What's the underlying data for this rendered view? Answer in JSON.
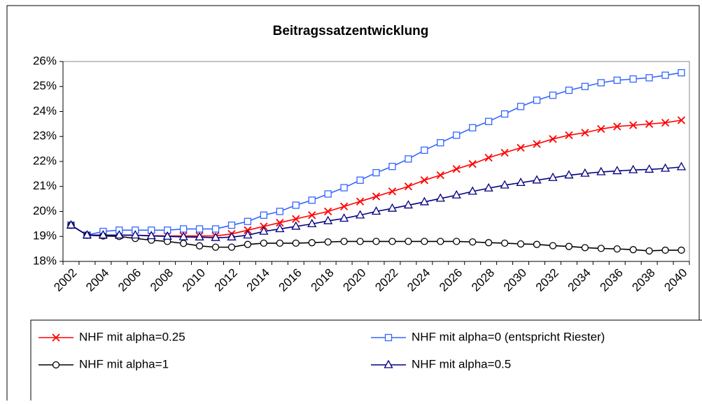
{
  "chart_data": {
    "type": "line",
    "title": "Beitragssatzentwicklung",
    "categories": [
      "2002",
      null,
      "2004",
      null,
      "2006",
      null,
      "2008",
      null,
      "2010",
      null,
      "2012",
      null,
      "2014",
      null,
      "2016",
      null,
      "2018",
      null,
      "2020",
      null,
      "2022",
      null,
      "2024",
      null,
      "2026",
      null,
      "2028",
      null,
      "2030",
      null,
      "2032",
      null,
      "2034",
      null,
      "2036",
      null,
      "2038",
      null,
      "2040"
    ],
    "ylim": [
      18,
      26
    ],
    "yticks": [
      {
        "value": 18,
        "label": "18%"
      },
      {
        "value": 19,
        "label": "19%"
      },
      {
        "value": 20,
        "label": "20%"
      },
      {
        "value": 21,
        "label": "21%"
      },
      {
        "value": 22,
        "label": "22%"
      },
      {
        "value": 23,
        "label": "23%"
      },
      {
        "value": 24,
        "label": "24%"
      },
      {
        "value": 25,
        "label": "25%"
      },
      {
        "value": 26,
        "label": "26%"
      }
    ],
    "grid": false,
    "series": [
      {
        "name": "NHF mit alpha=0.25",
        "color": "#ff0000",
        "marker": "x",
        "values": [
          19.45,
          19.05,
          19.05,
          19.05,
          19.05,
          19.03,
          19.02,
          19.02,
          19.02,
          19.02,
          19.1,
          19.25,
          19.4,
          19.55,
          19.7,
          19.85,
          20.0,
          20.2,
          20.4,
          20.6,
          20.8,
          21.0,
          21.25,
          21.45,
          21.7,
          21.9,
          22.15,
          22.35,
          22.55,
          22.7,
          22.9,
          23.05,
          23.15,
          23.3,
          23.4,
          23.45,
          23.5,
          23.55,
          23.65
        ]
      },
      {
        "name": "NHF mit alpha=0 (entspricht Riester)",
        "color": "#3366ff",
        "marker": "square",
        "values": [
          19.45,
          19.05,
          19.2,
          19.25,
          19.25,
          19.25,
          19.25,
          19.3,
          19.3,
          19.3,
          19.45,
          19.6,
          19.85,
          20.0,
          20.25,
          20.45,
          20.7,
          20.95,
          21.25,
          21.55,
          21.8,
          22.1,
          22.45,
          22.75,
          23.05,
          23.35,
          23.6,
          23.9,
          24.2,
          24.45,
          24.65,
          24.85,
          25.0,
          25.15,
          25.25,
          25.3,
          25.35,
          25.45,
          25.55
        ]
      },
      {
        "name": "NHF mit alpha=1",
        "color": "#000000",
        "marker": "circle",
        "values": [
          19.45,
          19.05,
          19.02,
          19.0,
          18.92,
          18.85,
          18.8,
          18.72,
          18.62,
          18.57,
          18.57,
          18.68,
          18.73,
          18.73,
          18.73,
          18.75,
          18.78,
          18.8,
          18.8,
          18.8,
          18.8,
          18.8,
          18.8,
          18.8,
          18.8,
          18.78,
          18.75,
          18.73,
          18.7,
          18.68,
          18.63,
          18.6,
          18.55,
          18.52,
          18.5,
          18.47,
          18.42,
          18.45,
          18.45
        ]
      },
      {
        "name": "NHF mit alpha=0.5",
        "color": "#000080",
        "marker": "triangle",
        "values": [
          19.45,
          19.05,
          19.05,
          19.05,
          19.05,
          19.02,
          19.0,
          18.98,
          18.97,
          18.95,
          18.97,
          19.05,
          19.2,
          19.3,
          19.4,
          19.5,
          19.62,
          19.72,
          19.85,
          20.0,
          20.12,
          20.25,
          20.38,
          20.52,
          20.65,
          20.8,
          20.93,
          21.05,
          21.15,
          21.25,
          21.35,
          21.45,
          21.52,
          21.58,
          21.62,
          21.66,
          21.68,
          21.72,
          21.78
        ]
      }
    ]
  }
}
